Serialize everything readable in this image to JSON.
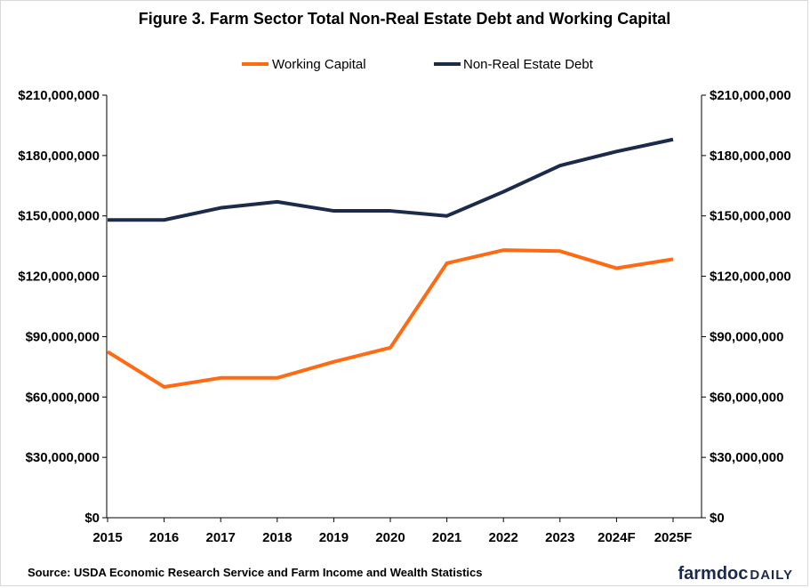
{
  "chart_data": {
    "type": "line",
    "title": "Figure 3. Farm Sector Total Non-Real Estate Debt and Working Capital",
    "categories": [
      "2015",
      "2016",
      "2017",
      "2018",
      "2019",
      "2020",
      "2021",
      "2022",
      "2023",
      "2024F",
      "2025F"
    ],
    "series": [
      {
        "name": "Working Capital",
        "color": "#ff6a13",
        "values": [
          82500000,
          65000000,
          69500000,
          69500000,
          77500000,
          84500000,
          126500000,
          133000000,
          132500000,
          124000000,
          128500000
        ]
      },
      {
        "name": "Non-Real Estate Debt",
        "color": "#1c2b4a",
        "values": [
          148000000,
          148000000,
          154000000,
          157000000,
          152500000,
          152500000,
          150000000,
          162000000,
          175000000,
          182000000,
          188000000
        ]
      }
    ],
    "ylim": [
      0,
      210000000
    ],
    "yticks": [
      0,
      30000000,
      60000000,
      90000000,
      120000000,
      150000000,
      180000000,
      210000000
    ],
    "ytick_labels": [
      "$0",
      "$30,000,000",
      "$60,000,000",
      "$90,000,000",
      "$120,000,000",
      "$150,000,000",
      "$180,000,000",
      "$210,000,000"
    ],
    "secondary_y_axis": true,
    "grid": false,
    "legend_position": "top-center"
  },
  "source_note": "Source: USDA  Economic  Research  Service and Farm Income and Wealth Statistics",
  "brand": {
    "part1": "farmdoc",
    "part2": "DAILY",
    "color": "#1c2b4a"
  }
}
